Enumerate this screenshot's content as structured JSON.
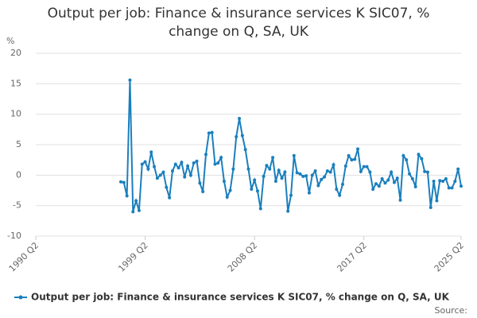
{
  "chart_data": {
    "type": "line",
    "title": "Output per job: Finance & insurance services K SIC07, % change on Q, SA, UK",
    "y_unit_label": "%",
    "source_label": "Source:",
    "categories": [
      "1990 Q2",
      null,
      null,
      null,
      null,
      null,
      null,
      null,
      null,
      null,
      null,
      null,
      null,
      null,
      null,
      null,
      null,
      null,
      null,
      null,
      null,
      null,
      null,
      null,
      null,
      null,
      null,
      null,
      null,
      null,
      null,
      null,
      null,
      null,
      null,
      null,
      "1999 Q2",
      null,
      null,
      null,
      null,
      null,
      null,
      null,
      null,
      null,
      null,
      null,
      null,
      null,
      null,
      null,
      null,
      null,
      null,
      null,
      null,
      null,
      null,
      null,
      null,
      null,
      null,
      null,
      null,
      null,
      null,
      null,
      null,
      null,
      null,
      null,
      "2008 Q2",
      null,
      null,
      null,
      null,
      null,
      null,
      null,
      null,
      null,
      null,
      null,
      null,
      null,
      null,
      null,
      null,
      null,
      null,
      null,
      null,
      null,
      null,
      null,
      null,
      null,
      null,
      null,
      null,
      null,
      null,
      null,
      null,
      null,
      null,
      null,
      "2017 Q2",
      null,
      null,
      null,
      null,
      null,
      null,
      null,
      null,
      null,
      null,
      null,
      null,
      null,
      null,
      null,
      null,
      null,
      null,
      null,
      null,
      null,
      null,
      null,
      null,
      null,
      null,
      null,
      null,
      null,
      null,
      null,
      "2025 Q2"
    ],
    "series": [
      {
        "name": "Output per job: Finance & insurance services K SIC07, % change on Q, SA, UK",
        "color": "#1a7fbd",
        "values": [
          null,
          null,
          null,
          null,
          null,
          null,
          null,
          null,
          null,
          null,
          null,
          null,
          null,
          null,
          null,
          null,
          null,
          null,
          null,
          null,
          null,
          null,
          null,
          null,
          null,
          null,
          null,
          null,
          -1.1,
          -1.2,
          -3.4,
          15.6,
          -6.0,
          -4.2,
          -5.8,
          1.8,
          2.2,
          1.0,
          3.8,
          1.4,
          -0.5,
          0.0,
          0.5,
          -2.0,
          -3.7,
          0.7,
          1.8,
          1.2,
          2.1,
          -0.3,
          1.5,
          0.0,
          2.0,
          2.3,
          -1.3,
          -2.7,
          3.4,
          6.9,
          7.0,
          1.8,
          2.0,
          2.9,
          -1.0,
          -3.6,
          -2.5,
          1.0,
          6.3,
          9.3,
          6.5,
          4.2,
          1.0,
          -2.3,
          -0.8,
          -2.6,
          -5.5,
          -0.2,
          1.6,
          1.0,
          2.9,
          -1.0,
          0.8,
          -0.5,
          0.5,
          -5.9,
          -3.3,
          3.2,
          0.4,
          0.2,
          -0.2,
          -0.1,
          -2.9,
          0.0,
          0.7,
          -1.7,
          -0.7,
          -0.3,
          0.7,
          0.5,
          1.7,
          -2.3,
          -3.3,
          -1.5,
          1.5,
          3.2,
          2.5,
          2.6,
          4.3,
          0.6,
          1.4,
          1.4,
          0.5,
          -2.3,
          -1.4,
          -1.8,
          -0.6,
          -1.3,
          -0.8,
          0.5,
          -1.2,
          -0.5,
          -4.1,
          3.2,
          2.5,
          0.2,
          -0.6,
          -1.9,
          3.4,
          2.7,
          0.6,
          0.5,
          -5.3,
          -1.0,
          -4.2,
          -0.9,
          -1.0,
          -0.6,
          -2.1,
          -2.1,
          -1.0,
          1.0,
          -1.8
        ]
      }
    ],
    "ylim": [
      -10,
      20
    ],
    "yticks": [
      -10,
      -5,
      0,
      5,
      10,
      15,
      20
    ],
    "grid": true
  }
}
